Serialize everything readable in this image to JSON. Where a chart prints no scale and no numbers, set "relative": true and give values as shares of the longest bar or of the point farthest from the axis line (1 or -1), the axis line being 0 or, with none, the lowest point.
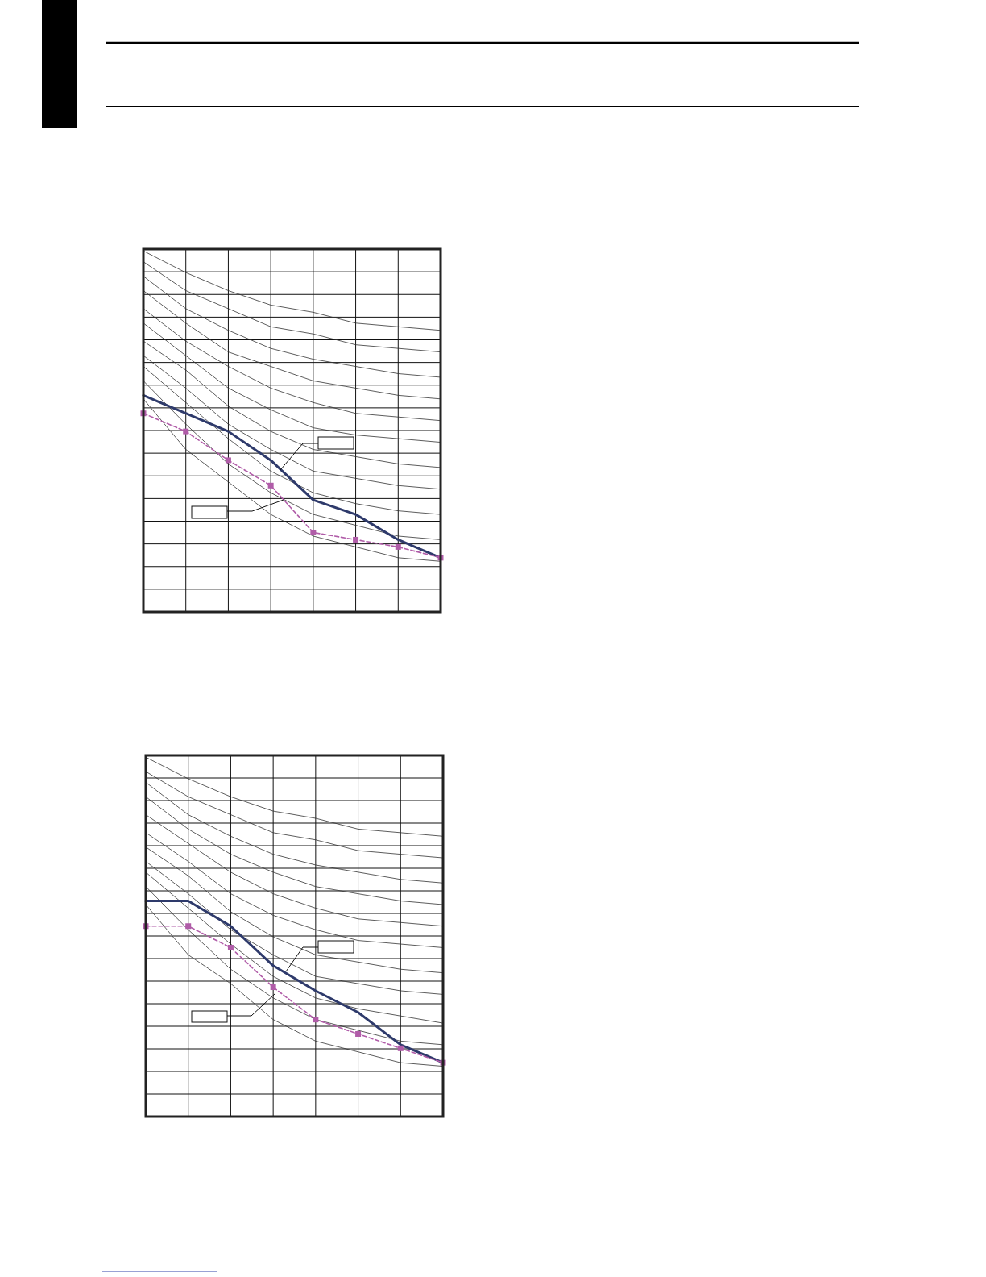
{
  "chart_data": [
    {
      "type": "line",
      "relative": true,
      "categories": [
        null,
        null,
        null,
        null,
        null,
        null,
        null,
        null
      ],
      "grid": true,
      "series": [
        {
          "color": "#333333",
          "values": [
            1.0,
            0.94,
            0.89,
            0.85,
            0.83,
            0.8,
            0.79,
            0.78
          ]
        },
        {
          "color": "#333333",
          "values": [
            0.97,
            0.89,
            0.84,
            0.79,
            0.77,
            0.74,
            0.73,
            0.72
          ]
        },
        {
          "color": "#333333",
          "values": [
            0.93,
            0.84,
            0.78,
            0.73,
            0.7,
            0.68,
            0.66,
            0.65
          ]
        },
        {
          "color": "#333333",
          "values": [
            0.89,
            0.8,
            0.72,
            0.68,
            0.64,
            0.62,
            0.6,
            0.59
          ]
        },
        {
          "color": "#333333",
          "values": [
            0.84,
            0.75,
            0.68,
            0.62,
            0.58,
            0.55,
            0.54,
            0.53
          ]
        },
        {
          "color": "#333333",
          "values": [
            0.8,
            0.71,
            0.62,
            0.56,
            0.51,
            0.49,
            0.48,
            0.47
          ]
        },
        {
          "color": "#333333",
          "values": [
            0.75,
            0.67,
            0.57,
            0.5,
            0.45,
            0.43,
            0.41,
            0.4
          ]
        },
        {
          "color": "#333333",
          "values": [
            0.71,
            0.62,
            0.52,
            0.45,
            0.39,
            0.37,
            0.35,
            0.34
          ]
        },
        {
          "color": "#333333",
          "values": [
            0.68,
            0.58,
            0.48,
            0.39,
            0.33,
            0.3,
            0.28,
            0.27
          ]
        },
        {
          "color": "#333333",
          "values": [
            0.64,
            0.52,
            0.41,
            0.33,
            0.27,
            0.24,
            0.21,
            0.2
          ]
        },
        {
          "color": "#333333",
          "values": [
            0.59,
            0.45,
            0.36,
            0.27,
            0.21,
            0.18,
            0.15,
            0.14
          ]
        },
        {
          "color": "#2e3a6b",
          "values": [
            0.6,
            0.55,
            0.5,
            0.42,
            0.31,
            0.27,
            0.2,
            0.15
          ]
        },
        {
          "color": "#b05ca8",
          "line_style": "dashed",
          "marker": "square",
          "values": [
            0.55,
            0.5,
            0.42,
            0.35,
            0.22,
            0.2,
            0.18,
            0.15
          ]
        }
      ]
    },
    {
      "type": "line",
      "relative": true,
      "categories": [
        null,
        null,
        null,
        null,
        null,
        null,
        null,
        null
      ],
      "grid": true,
      "series": [
        {
          "color": "#333333",
          "values": [
            1.0,
            0.94,
            0.89,
            0.85,
            0.83,
            0.8,
            0.79,
            0.78
          ]
        },
        {
          "color": "#333333",
          "values": [
            0.96,
            0.89,
            0.84,
            0.79,
            0.77,
            0.74,
            0.73,
            0.72
          ]
        },
        {
          "color": "#333333",
          "values": [
            0.93,
            0.84,
            0.78,
            0.73,
            0.7,
            0.68,
            0.66,
            0.65
          ]
        },
        {
          "color": "#333333",
          "values": [
            0.89,
            0.8,
            0.73,
            0.68,
            0.64,
            0.62,
            0.6,
            0.59
          ]
        },
        {
          "color": "#333333",
          "values": [
            0.84,
            0.76,
            0.68,
            0.62,
            0.58,
            0.55,
            0.54,
            0.53
          ]
        },
        {
          "color": "#333333",
          "values": [
            0.79,
            0.71,
            0.62,
            0.56,
            0.52,
            0.49,
            0.48,
            0.47
          ]
        },
        {
          "color": "#333333",
          "values": [
            0.75,
            0.67,
            0.57,
            0.5,
            0.45,
            0.43,
            0.41,
            0.4
          ]
        },
        {
          "color": "#333333",
          "values": [
            0.71,
            0.62,
            0.52,
            0.45,
            0.39,
            0.37,
            0.35,
            0.34
          ]
        },
        {
          "color": "#333333",
          "values": [
            0.68,
            0.58,
            0.48,
            0.39,
            0.33,
            0.3,
            0.28,
            0.26
          ]
        },
        {
          "color": "#333333",
          "values": [
            0.64,
            0.52,
            0.41,
            0.33,
            0.27,
            0.24,
            0.21,
            0.2
          ]
        },
        {
          "color": "#333333",
          "values": [
            0.59,
            0.45,
            0.37,
            0.27,
            0.21,
            0.18,
            0.15,
            0.14
          ]
        },
        {
          "color": "#2e3a6b",
          "values": [
            0.6,
            0.6,
            0.53,
            0.42,
            0.35,
            0.29,
            0.2,
            0.15
          ]
        },
        {
          "color": "#b05ca8",
          "line_style": "dashed",
          "marker": "square",
          "values": [
            0.53,
            0.53,
            0.47,
            0.36,
            0.27,
            0.23,
            0.19,
            0.15
          ]
        }
      ]
    }
  ]
}
